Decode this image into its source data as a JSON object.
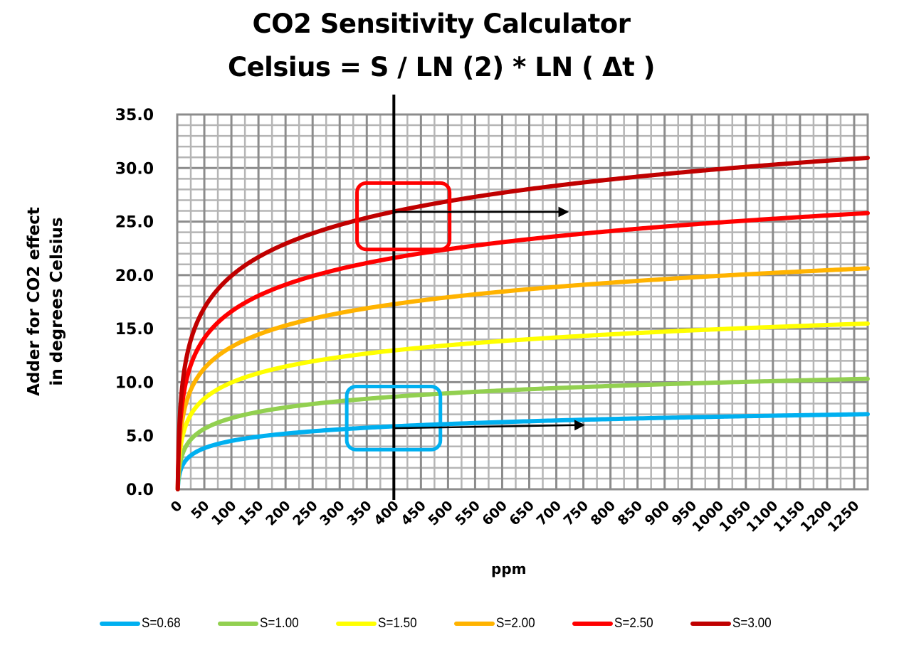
{
  "chart_data": {
    "type": "line",
    "title": "CO2 Sensitivity Calculator",
    "subtitle": "Celsius  = S / LN (2) * LN (  Δt )",
    "xlabel": "ppm",
    "ylabel_lines": [
      "Adder for CO2 effect",
      "in degrees Celsius"
    ],
    "xlim": [
      0,
      1275
    ],
    "ylim": [
      0,
      35
    ],
    "x_ticks": [
      0,
      50,
      100,
      150,
      200,
      250,
      300,
      350,
      400,
      450,
      500,
      550,
      600,
      650,
      700,
      750,
      800,
      850,
      900,
      950,
      1000,
      1050,
      1100,
      1150,
      1200,
      1250
    ],
    "y_ticks": [
      "0.0",
      "5.0",
      "10.0",
      "15.0",
      "20.0",
      "25.0",
      "30.0",
      "35.0"
    ],
    "y_tick_values": [
      0,
      5,
      10,
      15,
      20,
      25,
      30,
      35
    ],
    "grid": true,
    "grid_minor_x": 25,
    "grid_minor_y": 1,
    "formula": "S / ln(2) * ln(ppm)",
    "series": [
      {
        "name": "S=0.68",
        "S": 0.68,
        "color": "#00B0F0"
      },
      {
        "name": "S=1.00",
        "S": 1.0,
        "color": "#92D050"
      },
      {
        "name": "S=1.50",
        "S": 1.5,
        "color": "#FFFF00"
      },
      {
        "name": "S=2.00",
        "S": 2.0,
        "color": "#FFB300"
      },
      {
        "name": "S=2.50",
        "S": 2.5,
        "color": "#FF0000"
      },
      {
        "name": "S=3.00",
        "S": 3.0,
        "color": "#C00000"
      }
    ],
    "sample_values_at_ppm": {
      "ppm": [
        1,
        50,
        100,
        200,
        400,
        800,
        1275
      ],
      "S=0.68": [
        0.0,
        3.84,
        4.52,
        5.2,
        5.88,
        6.56,
        7.01
      ],
      "S=1.00": [
        0.0,
        5.64,
        6.64,
        7.64,
        8.64,
        9.64,
        10.32
      ],
      "S=1.50": [
        0.0,
        8.47,
        9.97,
        11.47,
        12.97,
        14.47,
        15.48
      ],
      "S=2.00": [
        0.0,
        11.29,
        13.29,
        15.29,
        17.29,
        19.29,
        20.64
      ],
      "S=2.50": [
        0.0,
        14.11,
        16.61,
        19.11,
        21.61,
        24.11,
        25.8
      ],
      "S=3.00": [
        0.0,
        16.93,
        19.93,
        22.93,
        25.93,
        28.93,
        30.96
      ]
    },
    "annotations": {
      "vertical_line": {
        "x": 400,
        "color": "#000000"
      },
      "boxes": [
        {
          "name": "red-highlight",
          "color": "#FF0000",
          "x": [
            332,
            503
          ],
          "y": [
            22.4,
            28.6
          ]
        },
        {
          "name": "blue-highlight",
          "color": "#00B0F0",
          "x": [
            313,
            486
          ],
          "y": [
            3.7,
            9.6
          ]
        }
      ],
      "arrows": [
        {
          "name": "upper-arrow",
          "from": [
            400,
            25.9
          ],
          "to": [
            720,
            25.9
          ]
        },
        {
          "name": "lower-arrow",
          "from": [
            400,
            5.7
          ],
          "to": [
            750,
            6.0
          ]
        }
      ]
    },
    "legend_position": "bottom"
  }
}
